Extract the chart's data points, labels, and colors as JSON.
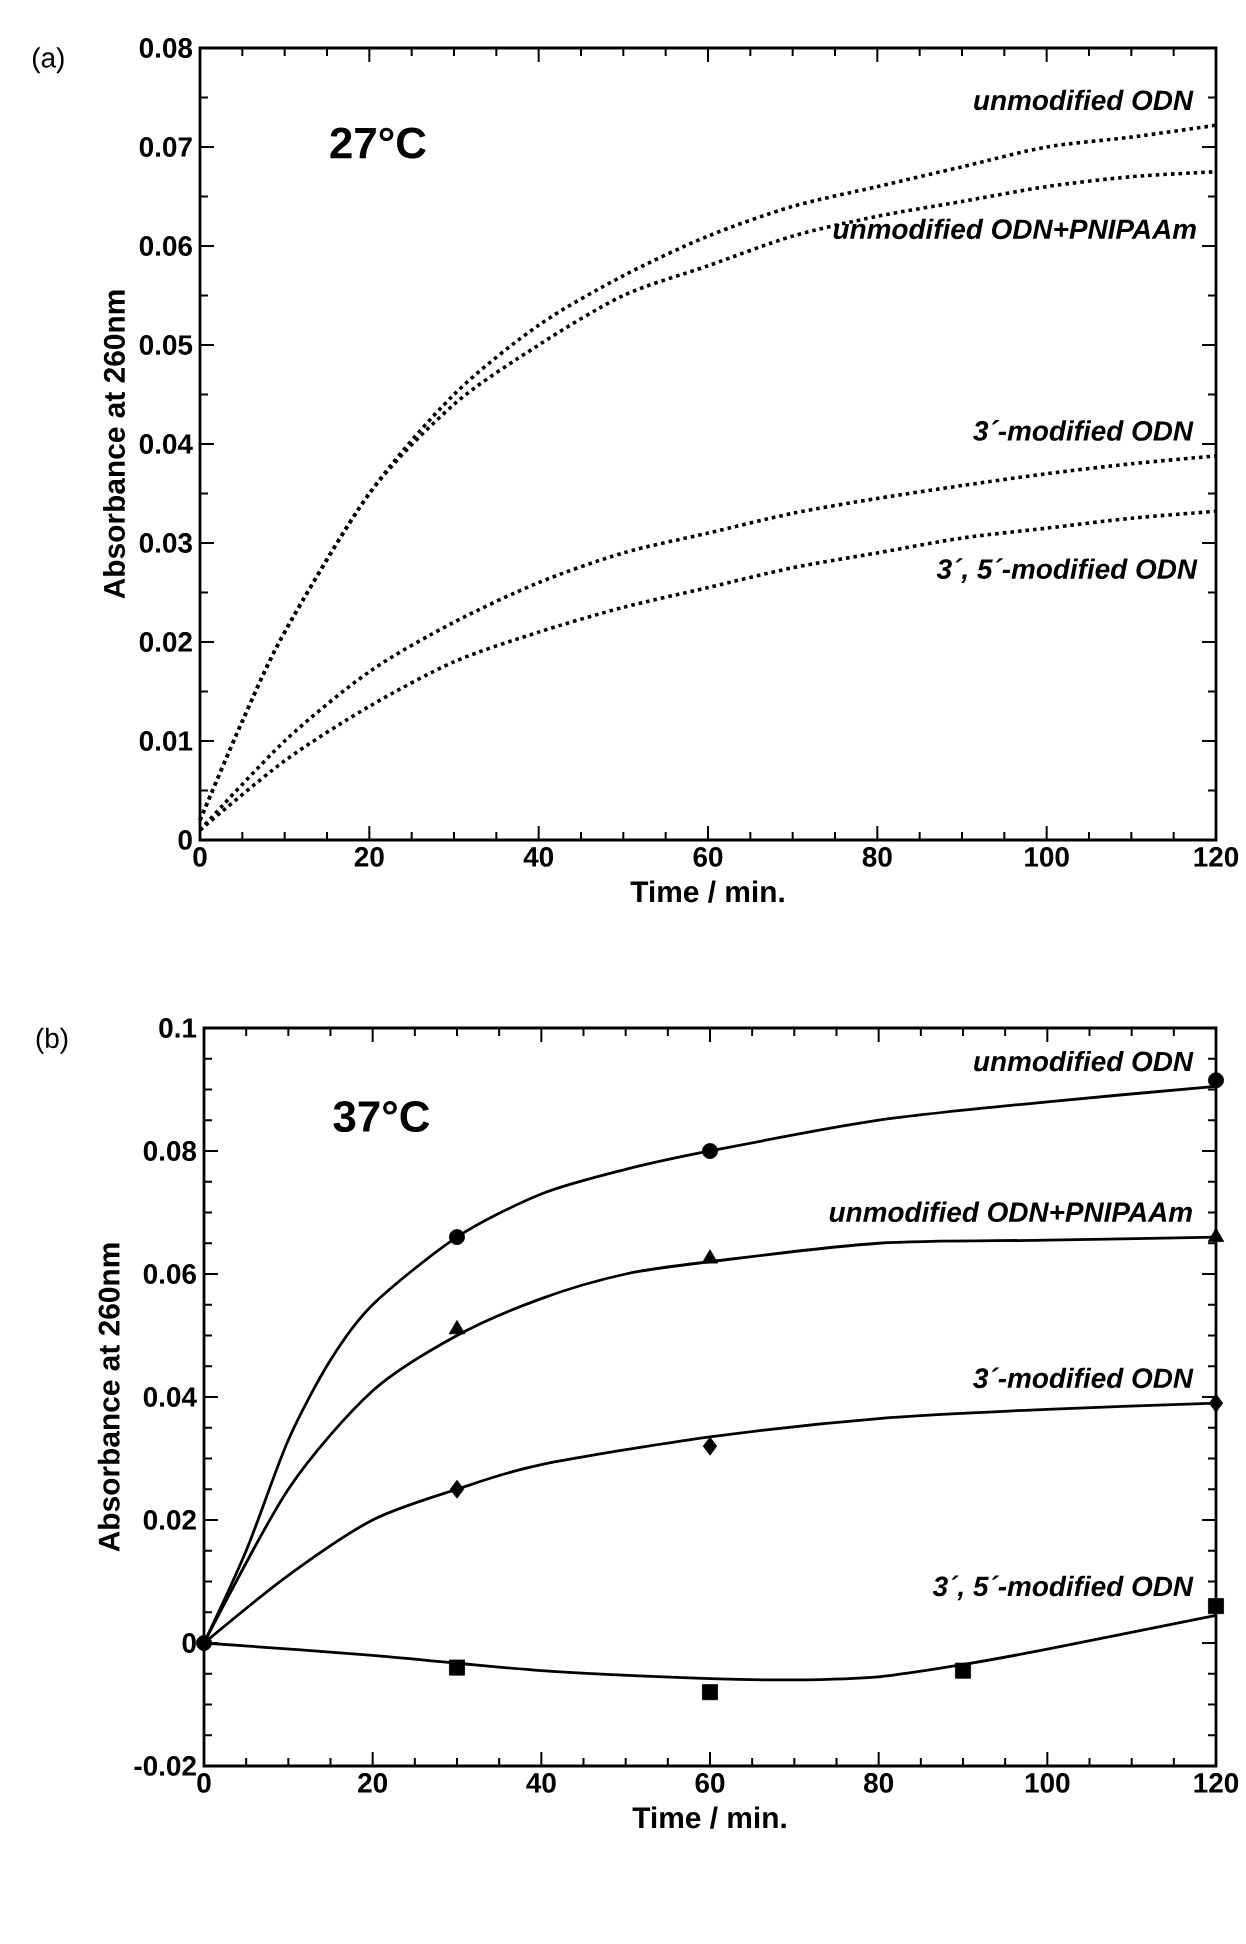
{
  "chart_data": [
    {
      "type": "line",
      "xlabel": "Time / min.",
      "ylabel": "Absorbance at 260nm",
      "annotations": [
        "(a)",
        "27°C",
        "unmodified ODN",
        "unmodified ODN+PNIPAAm",
        "3´-modified ODN",
        "3´, 5´-modified ODN"
      ],
      "line_style": "dotted",
      "xlim": [
        0,
        120
      ],
      "ylim": [
        0,
        0.08
      ],
      "xticks": [
        0,
        20,
        40,
        60,
        80,
        100,
        120
      ],
      "yticks": [
        0,
        0.01,
        0.02,
        0.03,
        0.04,
        0.05,
        0.06,
        0.07,
        0.08
      ],
      "series": [
        {
          "color": "#000000",
          "x": [
            0,
            5,
            10,
            20,
            30,
            40,
            50,
            60,
            70,
            80,
            90,
            100,
            110,
            120
          ],
          "values": [
            0.002,
            0.012,
            0.021,
            0.035,
            0.045,
            0.052,
            0.057,
            0.061,
            0.064,
            0.066,
            0.068,
            0.07,
            0.071,
            0.0722
          ]
        },
        {
          "color": "#000000",
          "x": [
            0,
            5,
            10,
            20,
            30,
            40,
            50,
            60,
            70,
            80,
            90,
            100,
            110,
            120
          ],
          "values": [
            0.002,
            0.012,
            0.021,
            0.035,
            0.044,
            0.05,
            0.055,
            0.058,
            0.061,
            0.063,
            0.0645,
            0.066,
            0.067,
            0.0675
          ]
        },
        {
          "color": "#000000",
          "x": [
            0,
            10,
            20,
            30,
            40,
            50,
            60,
            70,
            80,
            90,
            100,
            110,
            120
          ],
          "values": [
            0.001,
            0.01,
            0.017,
            0.022,
            0.026,
            0.029,
            0.031,
            0.033,
            0.0345,
            0.0358,
            0.037,
            0.038,
            0.0388
          ]
        },
        {
          "color": "#000000",
          "x": [
            0,
            10,
            20,
            30,
            40,
            50,
            60,
            70,
            80,
            90,
            100,
            110,
            120
          ],
          "values": [
            0.001,
            0.008,
            0.0135,
            0.018,
            0.021,
            0.0235,
            0.0255,
            0.0275,
            0.029,
            0.0305,
            0.0315,
            0.0325,
            0.0332
          ]
        }
      ]
    },
    {
      "type": "line",
      "xlabel": "Time / min.",
      "ylabel": "Absorbance at 260nm",
      "annotations": [
        "(b)",
        "37°C",
        "unmodified ODN",
        "unmodified ODN+PNIPAAm",
        "3´-modified ODN",
        "3´, 5´-modified ODN"
      ],
      "line_style": "solid",
      "xlim": [
        0,
        120
      ],
      "ylim": [
        -0.02,
        0.1
      ],
      "xticks": [
        0,
        20,
        40,
        60,
        80,
        100,
        120
      ],
      "yticks": [
        -0.02,
        0,
        0.02,
        0.04,
        0.06,
        0.08,
        0.1
      ],
      "series": [
        {
          "color": "#000000",
          "x": [
            0,
            5,
            10,
            15,
            20,
            30,
            40,
            50,
            60,
            80,
            100,
            120
          ],
          "values": [
            0,
            0.015,
            0.033,
            0.046,
            0.055,
            0.066,
            0.073,
            0.077,
            0.08,
            0.085,
            0.088,
            0.0905
          ]
        },
        {
          "color": "#000000",
          "x": [
            0,
            10,
            20,
            30,
            40,
            50,
            60,
            80,
            100,
            120
          ],
          "values": [
            0,
            0.025,
            0.041,
            0.05,
            0.056,
            0.06,
            0.062,
            0.065,
            0.0655,
            0.066
          ]
        },
        {
          "color": "#000000",
          "x": [
            0,
            10,
            20,
            30,
            40,
            60,
            80,
            100,
            120
          ],
          "values": [
            0,
            0.011,
            0.02,
            0.025,
            0.029,
            0.0335,
            0.0365,
            0.038,
            0.039
          ]
        },
        {
          "color": "#000000",
          "x": [
            0,
            20,
            40,
            60,
            70,
            80,
            90,
            100,
            120
          ],
          "values": [
            0,
            -0.002,
            -0.0045,
            -0.0058,
            -0.006,
            -0.0055,
            -0.0035,
            -0.001,
            0.0045
          ]
        },
        {
          "type": "scatter",
          "marker": "circle",
          "color": "#000000",
          "x": [
            0,
            30,
            60,
            120
          ],
          "values": [
            0,
            0.066,
            0.08,
            0.0915
          ]
        },
        {
          "type": "scatter",
          "marker": "triangle",
          "color": "#000000",
          "x": [
            30,
            60,
            120
          ],
          "values": [
            0.051,
            0.0625,
            0.066
          ]
        },
        {
          "type": "scatter",
          "marker": "diamond",
          "color": "#000000",
          "x": [
            30,
            60,
            120
          ],
          "values": [
            0.025,
            0.032,
            0.039
          ]
        },
        {
          "type": "scatter",
          "marker": "square",
          "color": "#000000",
          "x": [
            30,
            60,
            90,
            120
          ],
          "values": [
            -0.004,
            -0.008,
            -0.0045,
            0.006
          ]
        }
      ]
    }
  ]
}
